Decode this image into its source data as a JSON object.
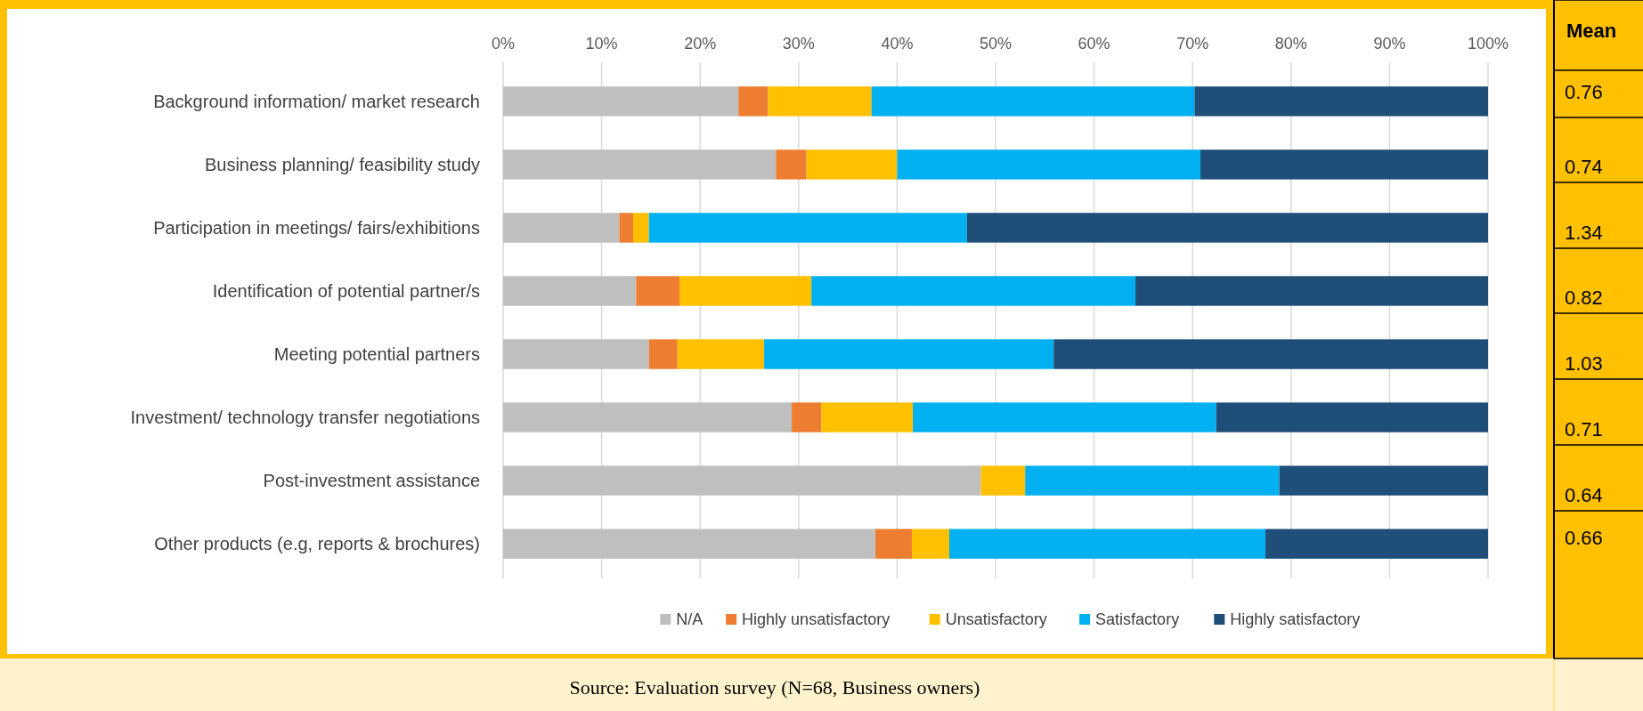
{
  "chart_data": [
    {
      "type": "bar",
      "orientation": "horizontal",
      "stacked": true,
      "categories": [
        "Background information/ market research",
        "Business planning/ feasibility study",
        "Participation in meetings/ fairs/exhibitions",
        "Identification of potential partner/s",
        "Meeting potential partners",
        "Investment/ technology transfer negotiations",
        "Post-investment assistance",
        "Other products (e.g, reports & brochures)"
      ],
      "series": [
        {
          "name": "N/A",
          "color": "#bfbfbf",
          "values": [
            23.9,
            27.7,
            11.8,
            13.5,
            14.8,
            29.3,
            48.5,
            37.8
          ]
        },
        {
          "name": "Highly unsatisfactory",
          "color": "#ed7d31",
          "values": [
            3.0,
            3.1,
            1.4,
            4.4,
            2.9,
            3.0,
            0,
            3.7
          ]
        },
        {
          "name": "Unsatisfactory",
          "color": "#ffc000",
          "values": [
            10.5,
            9.2,
            1.6,
            13.4,
            8.8,
            9.3,
            4.5,
            3.8
          ]
        },
        {
          "name": "Satisfactory",
          "color": "#00b0f0",
          "values": [
            32.8,
            30.8,
            32.3,
            32.9,
            29.4,
            30.8,
            25.8,
            32.1
          ]
        },
        {
          "name": "Highly satisfactory",
          "color": "#1f4e79",
          "values": [
            29.8,
            29.2,
            52.9,
            35.8,
            44.1,
            27.6,
            21.2,
            22.6
          ]
        }
      ],
      "xlim": [
        0,
        100
      ],
      "xticks": [
        {
          "value": 0,
          "label": "0%"
        },
        {
          "value": 10,
          "label": "10%"
        },
        {
          "value": 20,
          "label": "20%"
        },
        {
          "value": 30,
          "label": "30%"
        },
        {
          "value": 40,
          "label": "40%"
        },
        {
          "value": 50,
          "label": "50%"
        },
        {
          "value": 60,
          "label": "60%"
        },
        {
          "value": 70,
          "label": "70%"
        },
        {
          "value": 80,
          "label": "80%"
        },
        {
          "value": 90,
          "label": "90%"
        },
        {
          "value": 100,
          "label": "100%"
        }
      ],
      "grid": "x",
      "legend": "bottom",
      "annotations": [
        "Source: Evaluation survey (N=68, Business owners)"
      ]
    },
    {
      "type": "other",
      "title": "Mean",
      "annotations": [
        "0.76",
        "0.74",
        "1.34",
        "0.82",
        "1.03",
        "0.71",
        "0.64",
        "0.66"
      ]
    }
  ]
}
